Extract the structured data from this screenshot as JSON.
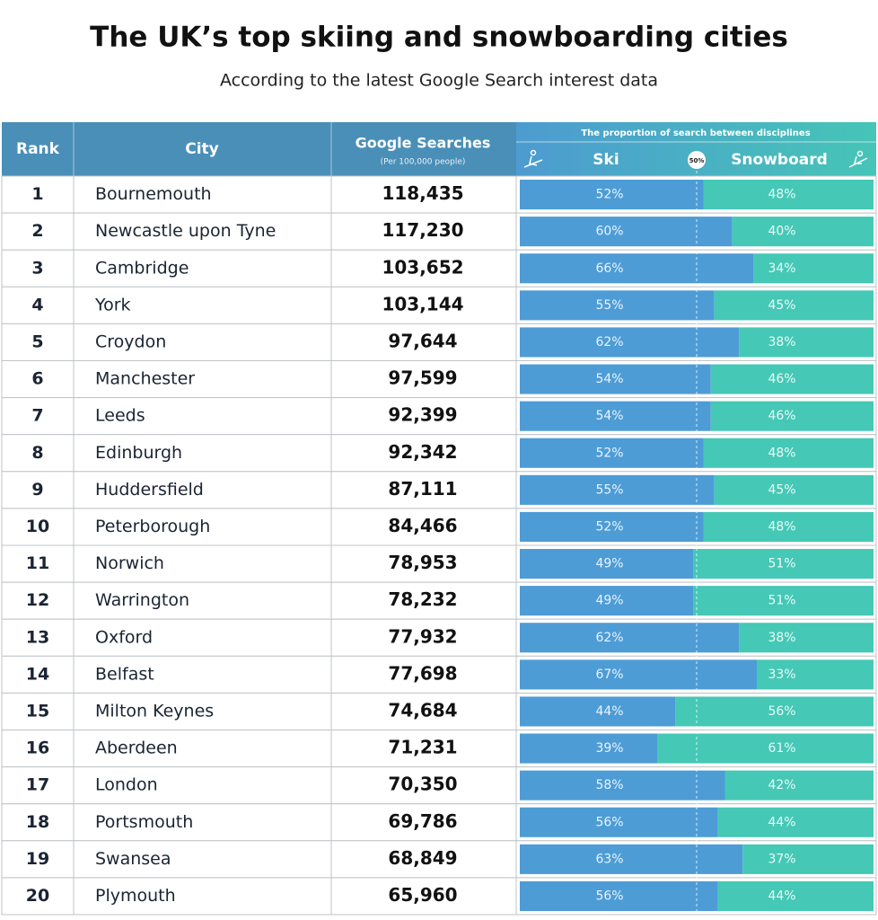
{
  "header": {
    "title": "The UK’s top skiing and snowboarding cities",
    "subtitle": "According to the latest Google Search interest data"
  },
  "table": {
    "columns": {
      "rank": "Rank",
      "city": "City",
      "searches": "Google Searches",
      "searches_note": "(Per 100,000 people)",
      "proportion": "The proportion of search between disciplines",
      "ski": "Ski",
      "snowboard": "Snowboard"
    },
    "midline": {
      "value": 50,
      "label": "50%"
    },
    "ski_color": "#4d9cd6",
    "snowboard_color": "#45c8b6",
    "rows": [
      {
        "rank": 1,
        "city": "Bournemouth",
        "searches": "118,435",
        "ski": 52,
        "ski_label": "52%",
        "snowboard": 48,
        "snowboard_label": "48%"
      },
      {
        "rank": 2,
        "city": "Newcastle upon Tyne",
        "searches": "117,230",
        "ski": 60,
        "ski_label": "60%",
        "snowboard": 40,
        "snowboard_label": "40%"
      },
      {
        "rank": 3,
        "city": "Cambridge",
        "searches": "103,652",
        "ski": 66,
        "ski_label": "66%",
        "snowboard": 34,
        "snowboard_label": "34%"
      },
      {
        "rank": 4,
        "city": "York",
        "searches": "103,144",
        "ski": 55,
        "ski_label": "55%",
        "snowboard": 45,
        "snowboard_label": "45%"
      },
      {
        "rank": 5,
        "city": "Croydon",
        "searches": "97,644",
        "ski": 62,
        "ski_label": "62%",
        "snowboard": 38,
        "snowboard_label": "38%"
      },
      {
        "rank": 6,
        "city": "Manchester",
        "searches": "97,599",
        "ski": 54,
        "ski_label": "54%",
        "snowboard": 46,
        "snowboard_label": "46%"
      },
      {
        "rank": 7,
        "city": "Leeds",
        "searches": "92,399",
        "ski": 54,
        "ski_label": "54%",
        "snowboard": 46,
        "snowboard_label": "46%"
      },
      {
        "rank": 8,
        "city": "Edinburgh",
        "searches": "92,342",
        "ski": 52,
        "ski_label": "52%",
        "snowboard": 48,
        "snowboard_label": "48%"
      },
      {
        "rank": 9,
        "city": "Huddersfield",
        "searches": "87,111",
        "ski": 55,
        "ski_label": "55%",
        "snowboard": 45,
        "snowboard_label": "45%"
      },
      {
        "rank": 10,
        "city": "Peterborough",
        "searches": "84,466",
        "ski": 52,
        "ski_label": "52%",
        "snowboard": 48,
        "snowboard_label": "48%"
      },
      {
        "rank": 11,
        "city": "Norwich",
        "searches": "78,953",
        "ski": 49,
        "ski_label": "49%",
        "snowboard": 51,
        "snowboard_label": "51%"
      },
      {
        "rank": 12,
        "city": "Warrington",
        "searches": "78,232",
        "ski": 49,
        "ski_label": "49%",
        "snowboard": 51,
        "snowboard_label": "51%"
      },
      {
        "rank": 13,
        "city": "Oxford",
        "searches": "77,932",
        "ski": 62,
        "ski_label": "62%",
        "snowboard": 38,
        "snowboard_label": "38%"
      },
      {
        "rank": 14,
        "city": "Belfast",
        "searches": "77,698",
        "ski": 67,
        "ski_label": "67%",
        "snowboard": 33,
        "snowboard_label": "33%"
      },
      {
        "rank": 15,
        "city": "Milton Keynes",
        "searches": "74,684",
        "ski": 44,
        "ski_label": "44%",
        "snowboard": 56,
        "snowboard_label": "56%"
      },
      {
        "rank": 16,
        "city": "Aberdeen",
        "searches": "71,231",
        "ski": 39,
        "ski_label": "39%",
        "snowboard": 61,
        "snowboard_label": "61%"
      },
      {
        "rank": 17,
        "city": "London",
        "searches": "70,350",
        "ski": 58,
        "ski_label": "58%",
        "snowboard": 42,
        "snowboard_label": "42%"
      },
      {
        "rank": 18,
        "city": "Portsmouth",
        "searches": "69,786",
        "ski": 56,
        "ski_label": "56%",
        "snowboard": 44,
        "snowboard_label": "44%"
      },
      {
        "rank": 19,
        "city": "Swansea",
        "searches": "68,849",
        "ski": 63,
        "ski_label": "63%",
        "snowboard": 37,
        "snowboard_label": "37%"
      },
      {
        "rank": 20,
        "city": "Plymouth",
        "searches": "65,960",
        "ski": 56,
        "ski_label": "56%",
        "snowboard": 44,
        "snowboard_label": "44%"
      }
    ]
  }
}
